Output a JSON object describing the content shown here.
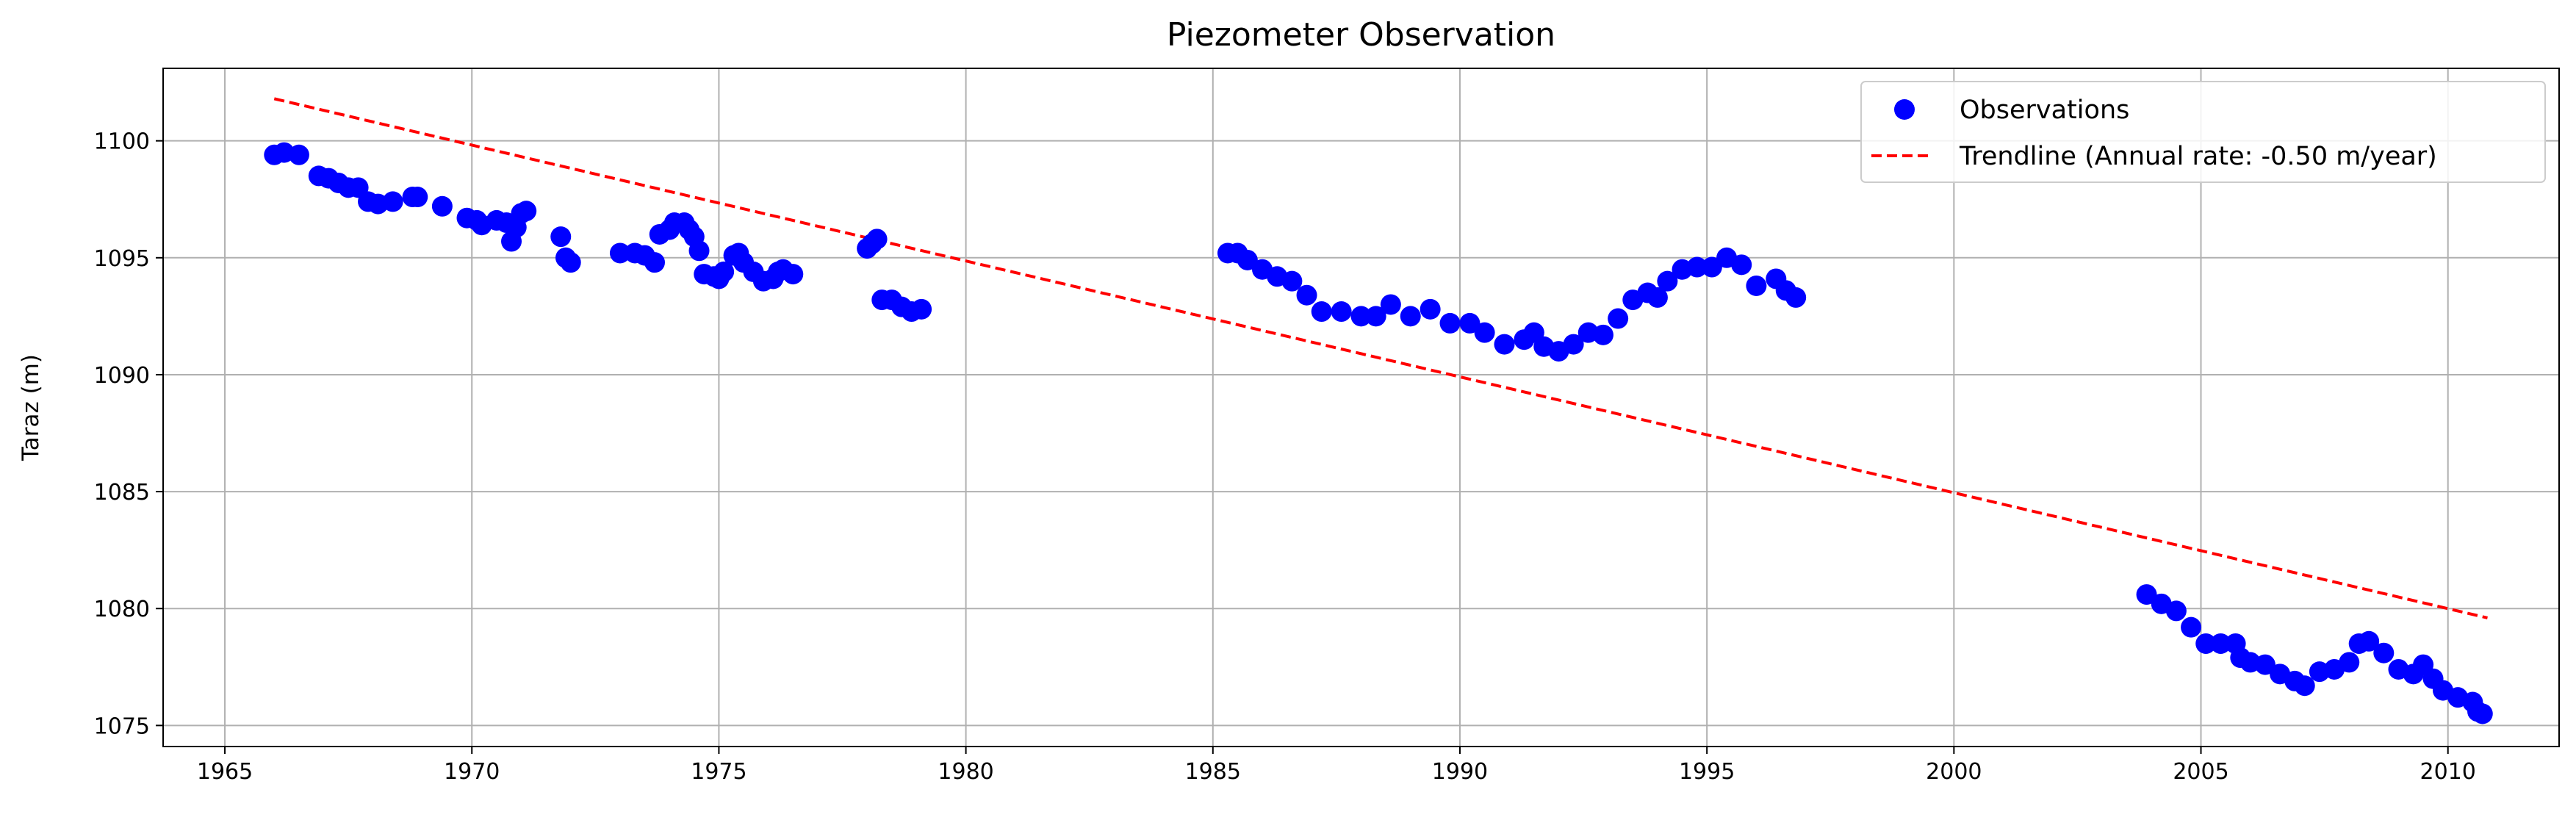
{
  "chart_data": {
    "type": "scatter",
    "title": "Piezometer Observation",
    "xlabel": "",
    "ylabel": "Taraz (m)",
    "xlim": [
      1963.75,
      2012.25
    ],
    "ylim": [
      1074.1,
      1103.1
    ],
    "xticks": [
      1965,
      1970,
      1975,
      1980,
      1985,
      1990,
      1995,
      2000,
      2005,
      2010
    ],
    "yticks": [
      1075,
      1080,
      1085,
      1090,
      1095,
      1100
    ],
    "grid": true,
    "legend_position": "top-right",
    "series": [
      {
        "name": "Observations",
        "kind": "scatter",
        "color": "#0000ff",
        "points": [
          [
            1966.0,
            1099.4
          ],
          [
            1966.2,
            1099.5
          ],
          [
            1966.5,
            1099.4
          ],
          [
            1966.9,
            1098.5
          ],
          [
            1967.1,
            1098.4
          ],
          [
            1967.3,
            1098.2
          ],
          [
            1967.5,
            1098.0
          ],
          [
            1967.7,
            1098.0
          ],
          [
            1967.9,
            1097.4
          ],
          [
            1968.1,
            1097.3
          ],
          [
            1968.4,
            1097.4
          ],
          [
            1968.8,
            1097.6
          ],
          [
            1968.9,
            1097.6
          ],
          [
            1969.4,
            1097.2
          ],
          [
            1969.9,
            1096.7
          ],
          [
            1970.1,
            1096.6
          ],
          [
            1970.2,
            1096.4
          ],
          [
            1970.5,
            1096.6
          ],
          [
            1970.7,
            1096.5
          ],
          [
            1970.8,
            1095.7
          ],
          [
            1970.9,
            1096.3
          ],
          [
            1971.0,
            1096.9
          ],
          [
            1971.1,
            1097.0
          ],
          [
            1971.8,
            1095.9
          ],
          [
            1971.9,
            1095.0
          ],
          [
            1972.0,
            1094.8
          ],
          [
            1973.0,
            1095.2
          ],
          [
            1973.3,
            1095.2
          ],
          [
            1973.5,
            1095.1
          ],
          [
            1973.7,
            1094.8
          ],
          [
            1973.8,
            1096.0
          ],
          [
            1974.0,
            1096.2
          ],
          [
            1974.1,
            1096.5
          ],
          [
            1974.3,
            1096.5
          ],
          [
            1974.4,
            1096.2
          ],
          [
            1974.5,
            1095.9
          ],
          [
            1974.6,
            1095.3
          ],
          [
            1974.7,
            1094.3
          ],
          [
            1974.9,
            1094.2
          ],
          [
            1975.0,
            1094.1
          ],
          [
            1975.1,
            1094.4
          ],
          [
            1975.3,
            1095.1
          ],
          [
            1975.4,
            1095.2
          ],
          [
            1975.5,
            1094.8
          ],
          [
            1975.7,
            1094.4
          ],
          [
            1975.9,
            1094.0
          ],
          [
            1976.1,
            1094.1
          ],
          [
            1976.2,
            1094.4
          ],
          [
            1976.3,
            1094.5
          ],
          [
            1976.5,
            1094.3
          ],
          [
            1978.0,
            1095.4
          ],
          [
            1978.1,
            1095.6
          ],
          [
            1978.2,
            1095.8
          ],
          [
            1978.3,
            1093.2
          ],
          [
            1978.5,
            1093.2
          ],
          [
            1978.7,
            1092.9
          ],
          [
            1978.9,
            1092.7
          ],
          [
            1979.1,
            1092.8
          ],
          [
            1985.3,
            1095.2
          ],
          [
            1985.5,
            1095.2
          ],
          [
            1985.7,
            1094.9
          ],
          [
            1986.0,
            1094.5
          ],
          [
            1986.3,
            1094.2
          ],
          [
            1986.6,
            1094.0
          ],
          [
            1986.9,
            1093.4
          ],
          [
            1987.2,
            1092.7
          ],
          [
            1987.6,
            1092.7
          ],
          [
            1988.0,
            1092.5
          ],
          [
            1988.3,
            1092.5
          ],
          [
            1988.6,
            1093.0
          ],
          [
            1989.0,
            1092.5
          ],
          [
            1989.4,
            1092.8
          ],
          [
            1989.8,
            1092.2
          ],
          [
            1990.2,
            1092.2
          ],
          [
            1990.5,
            1091.8
          ],
          [
            1990.9,
            1091.3
          ],
          [
            1991.3,
            1091.5
          ],
          [
            1991.5,
            1091.8
          ],
          [
            1991.7,
            1091.2
          ],
          [
            1992.0,
            1091.0
          ],
          [
            1992.3,
            1091.3
          ],
          [
            1992.6,
            1091.8
          ],
          [
            1992.9,
            1091.7
          ],
          [
            1993.2,
            1092.4
          ],
          [
            1993.5,
            1093.2
          ],
          [
            1993.8,
            1093.5
          ],
          [
            1994.0,
            1093.3
          ],
          [
            1994.2,
            1094.0
          ],
          [
            1994.5,
            1094.5
          ],
          [
            1994.8,
            1094.6
          ],
          [
            1995.1,
            1094.6
          ],
          [
            1995.4,
            1095.0
          ],
          [
            1995.7,
            1094.7
          ],
          [
            1996.0,
            1093.8
          ],
          [
            1996.4,
            1094.1
          ],
          [
            1996.6,
            1093.6
          ],
          [
            1996.8,
            1093.3
          ],
          [
            2003.9,
            1080.6
          ],
          [
            2004.2,
            1080.2
          ],
          [
            2004.5,
            1079.9
          ],
          [
            2004.8,
            1079.2
          ],
          [
            2005.1,
            1078.5
          ],
          [
            2005.4,
            1078.5
          ],
          [
            2005.7,
            1078.5
          ],
          [
            2005.8,
            1077.9
          ],
          [
            2006.0,
            1077.7
          ],
          [
            2006.3,
            1077.6
          ],
          [
            2006.6,
            1077.2
          ],
          [
            2006.9,
            1076.9
          ],
          [
            2007.1,
            1076.7
          ],
          [
            2007.4,
            1077.3
          ],
          [
            2007.7,
            1077.4
          ],
          [
            2008.0,
            1077.7
          ],
          [
            2008.2,
            1078.5
          ],
          [
            2008.4,
            1078.6
          ],
          [
            2008.7,
            1078.1
          ],
          [
            2009.0,
            1077.4
          ],
          [
            2009.3,
            1077.2
          ],
          [
            2009.5,
            1077.6
          ],
          [
            2009.7,
            1077.0
          ],
          [
            2009.9,
            1076.5
          ],
          [
            2010.2,
            1076.2
          ],
          [
            2010.5,
            1076.0
          ],
          [
            2010.6,
            1075.6
          ],
          [
            2010.7,
            1075.5
          ]
        ]
      },
      {
        "name": "Trendline (Annual rate: -0.50 m/year)",
        "kind": "line",
        "style": "dashed",
        "color": "#ff0000",
        "points": [
          [
            1966.0,
            1101.8
          ],
          [
            2010.8,
            1079.6
          ]
        ]
      }
    ]
  }
}
